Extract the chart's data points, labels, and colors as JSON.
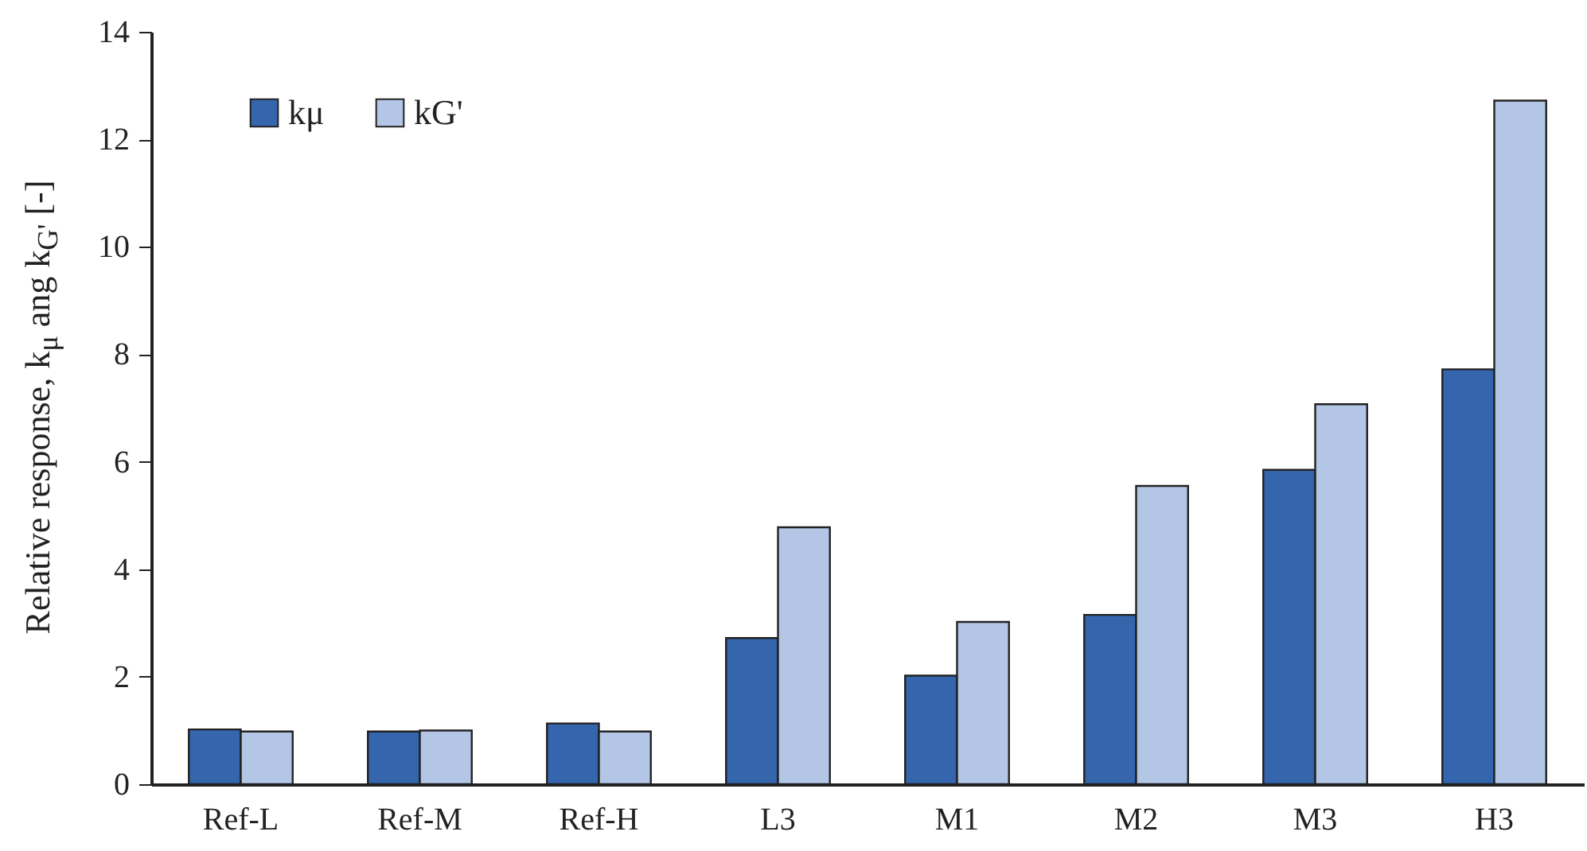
{
  "chart_data": {
    "type": "bar",
    "ylabel": "Relative response, k$_{μ}$ ang k$_{G'}$ [-]",
    "categories": [
      "Ref-L",
      "Ref-M",
      "Ref-H",
      "L3",
      "M1",
      "M2",
      "M3",
      "H3"
    ],
    "series": [
      {
        "name": "kμ",
        "color": "#3465ad",
        "values": [
          1.02,
          0.98,
          1.13,
          2.72,
          2.02,
          3.15,
          5.85,
          7.72
        ]
      },
      {
        "name": "kG'",
        "color": "#b3c6e6",
        "values": [
          0.98,
          1.0,
          0.98,
          4.78,
          3.02,
          5.55,
          7.07,
          12.72
        ]
      }
    ],
    "ylim": [
      0,
      14
    ],
    "yticks": [
      0,
      2,
      4,
      6,
      8,
      10,
      12,
      14
    ],
    "grid": false,
    "legend": "top left"
  }
}
